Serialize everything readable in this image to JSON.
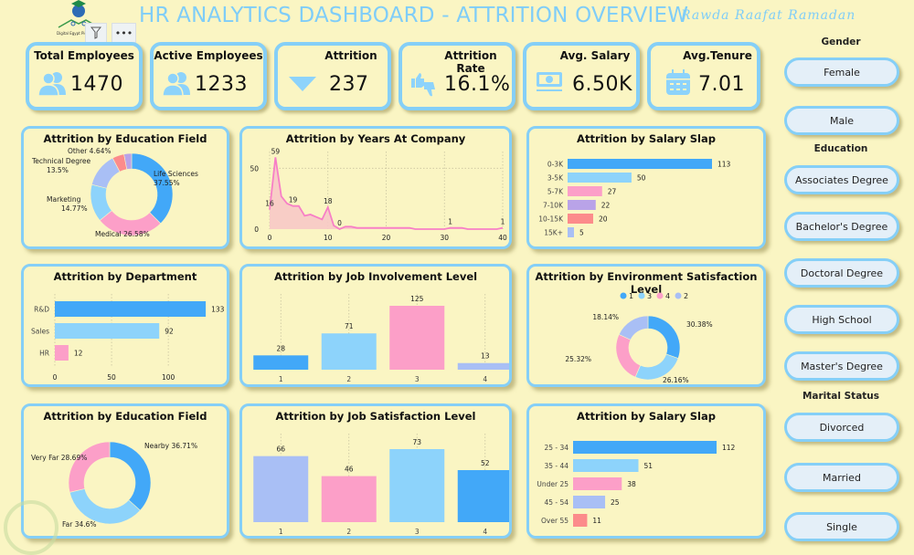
{
  "header": {
    "title": "HR ANALYTICS DASHBOARD - ATTRITION OVERVIEW",
    "author": "Rawda Raafat Ramadan",
    "logo_text": "Digital Egypt Pioneers",
    "more_options_label": "•••"
  },
  "colors": {
    "background": "#faf5c3",
    "accent": "#85cff7",
    "title": "#7fcdf8",
    "blue": "#42a8f8",
    "light_blue": "#8dd3fb",
    "pink": "#fc9fc8",
    "purple": "#b9a3e8",
    "periwinkle": "#a9bff5",
    "salmon": "#fc8b8b"
  },
  "kpis": [
    {
      "label": "Total Employees",
      "value": "1470",
      "icon": "users-icon"
    },
    {
      "label": "Active Employees",
      "value": "1233",
      "icon": "users-icon"
    },
    {
      "label": "Attrition",
      "value": "237",
      "icon": "down-triangle-icon"
    },
    {
      "label": "Attrition Rate",
      "value": "16.1%",
      "icon": "thumbs-up-down-icon"
    },
    {
      "label": "Avg. Salary",
      "value": "6.50K",
      "icon": "money-icon"
    },
    {
      "label": "Avg.Tenure",
      "value": "7.01",
      "icon": "calendar-icon"
    }
  ],
  "slicers": {
    "gender": {
      "title": "Gender",
      "options": [
        "Female",
        "Male"
      ]
    },
    "education": {
      "title": "Education",
      "options": [
        "Associates Degree",
        "Bachelor's Degree",
        "Doctoral Degree",
        "High School",
        "Master's Degree"
      ]
    },
    "marital": {
      "title": "Marital Status",
      "options": [
        "Divorced",
        "Married",
        "Single"
      ]
    }
  },
  "chart_data": [
    {
      "id": "education_field",
      "type": "pie",
      "title": "Attrition by Education Field",
      "categories": [
        "Life Sciences",
        "Medical",
        "Marketing",
        "Technical Degree",
        "Other"
      ],
      "values": [
        37.55,
        26.58,
        14.77,
        13.5,
        4.64
      ],
      "labels": [
        "Life Sciences\n37.55%",
        "Medical 26.58%",
        "Marketing\n14.77%",
        "Technical Degree\n13.5%",
        "Other 4.64%"
      ],
      "colors": [
        "#42a8f8",
        "#fc9fc8",
        "#8dd3fb",
        "#a9bff5",
        "#fc8b8b"
      ],
      "extra_slice": {
        "value": 3.0,
        "color": "#b9a3e8"
      }
    },
    {
      "id": "years_at_company",
      "type": "area",
      "title": "Attrition by Years At Company",
      "x": [
        0,
        1,
        2,
        3,
        4,
        5,
        6,
        7,
        8,
        9,
        10,
        11,
        12,
        13,
        14,
        15,
        16,
        17,
        18,
        19,
        20,
        21,
        22,
        23,
        24,
        25,
        26,
        27,
        28,
        29,
        30,
        31,
        32,
        33,
        34,
        35,
        36,
        37,
        38,
        39,
        40
      ],
      "values": [
        16,
        59,
        27,
        21,
        19,
        19,
        11,
        12,
        10,
        8,
        18,
        3,
        0,
        2,
        2,
        1,
        1,
        1,
        1,
        1,
        1,
        1,
        1,
        1,
        1,
        0,
        0,
        0,
        0,
        0,
        0,
        1,
        1,
        1,
        0,
        0,
        0,
        0,
        0,
        0,
        1
      ],
      "data_labels": [
        {
          "x": 0,
          "label": "16"
        },
        {
          "x": 1,
          "label": "59"
        },
        {
          "x": 4,
          "label": "19"
        },
        {
          "x": 10,
          "label": "18"
        },
        {
          "x": 12,
          "label": "0"
        },
        {
          "x": 31,
          "label": "1"
        },
        {
          "x": 40,
          "label": "1"
        }
      ],
      "xticks": [
        "0",
        "10",
        "20",
        "30",
        "40"
      ],
      "yticks": [
        "0",
        "50"
      ],
      "ylim": [
        0,
        60
      ],
      "xlim": [
        0,
        40
      ],
      "color": "#f77fc6",
      "fill": "#f7c9c6"
    },
    {
      "id": "salary_slab",
      "type": "bar",
      "orientation": "horizontal",
      "title": "Attrition by Salary Slap",
      "categories": [
        "0-3K",
        "3-5K",
        "5-7K",
        "7-10K",
        "10-15K",
        "15K+"
      ],
      "values": [
        113,
        50,
        27,
        22,
        20,
        5
      ],
      "colors": [
        "#42a8f8",
        "#8dd3fb",
        "#fc9fc8",
        "#b9a3e8",
        "#fc8b8b",
        "#a9bff5"
      ]
    },
    {
      "id": "department",
      "type": "bar",
      "orientation": "horizontal",
      "title": "Attrition by Department",
      "categories": [
        "R&D",
        "Sales",
        "HR"
      ],
      "values": [
        133,
        92,
        12
      ],
      "xticks": [
        "0",
        "50",
        "100"
      ],
      "xlim": [
        0,
        145
      ],
      "colors": [
        "#42a8f8",
        "#8dd3fb",
        "#fc9fc8"
      ]
    },
    {
      "id": "job_involvement",
      "type": "bar",
      "title": "Attrition by Job Involvement Level",
      "categories": [
        "1",
        "2",
        "3",
        "4"
      ],
      "values": [
        28,
        71,
        125,
        13
      ],
      "colors": [
        "#42a8f8",
        "#8dd3fb",
        "#fc9fc8",
        "#a9bff5"
      ]
    },
    {
      "id": "environment_satisfaction",
      "type": "pie",
      "title": "Attrition by Environment Satisfaction Level",
      "legend": [
        "1",
        "3",
        "4",
        "2"
      ],
      "legend_position": "top",
      "categories": [
        "1",
        "3",
        "4",
        "2"
      ],
      "values": [
        30.38,
        26.16,
        25.32,
        18.14
      ],
      "labels": [
        "30.38%",
        "26.16%",
        "25.32%",
        "18.14%"
      ],
      "colors": [
        "#42a8f8",
        "#8dd3fb",
        "#fc9fc8",
        "#a9bff5"
      ]
    },
    {
      "id": "distance",
      "type": "pie",
      "title": "Attrition by Education Field",
      "categories": [
        "Nearby",
        "Far",
        "Very Far"
      ],
      "values": [
        36.71,
        34.6,
        28.69
      ],
      "labels": [
        "Nearby 36.71%",
        "Far 34.6%",
        "Very Far 28.69%"
      ],
      "colors": [
        "#42a8f8",
        "#8dd3fb",
        "#fc9fc8"
      ]
    },
    {
      "id": "job_satisfaction",
      "type": "bar",
      "title": "Attrition by Job Satisfaction Level",
      "categories": [
        "1",
        "2",
        "3",
        "4"
      ],
      "values": [
        66,
        46,
        73,
        52
      ],
      "colors": [
        "#a9bff5",
        "#fc9fc8",
        "#8dd3fb",
        "#42a8f8"
      ]
    },
    {
      "id": "age_group",
      "type": "bar",
      "orientation": "horizontal",
      "title": "Attrition by Salary Slap",
      "categories": [
        "25 - 34",
        "35 - 44",
        "Under 25",
        "45 - 54",
        "Over 55"
      ],
      "values": [
        112,
        51,
        38,
        25,
        11
      ],
      "colors": [
        "#42a8f8",
        "#8dd3fb",
        "#fc9fc8",
        "#a9bff5",
        "#fc8b8b"
      ]
    }
  ]
}
